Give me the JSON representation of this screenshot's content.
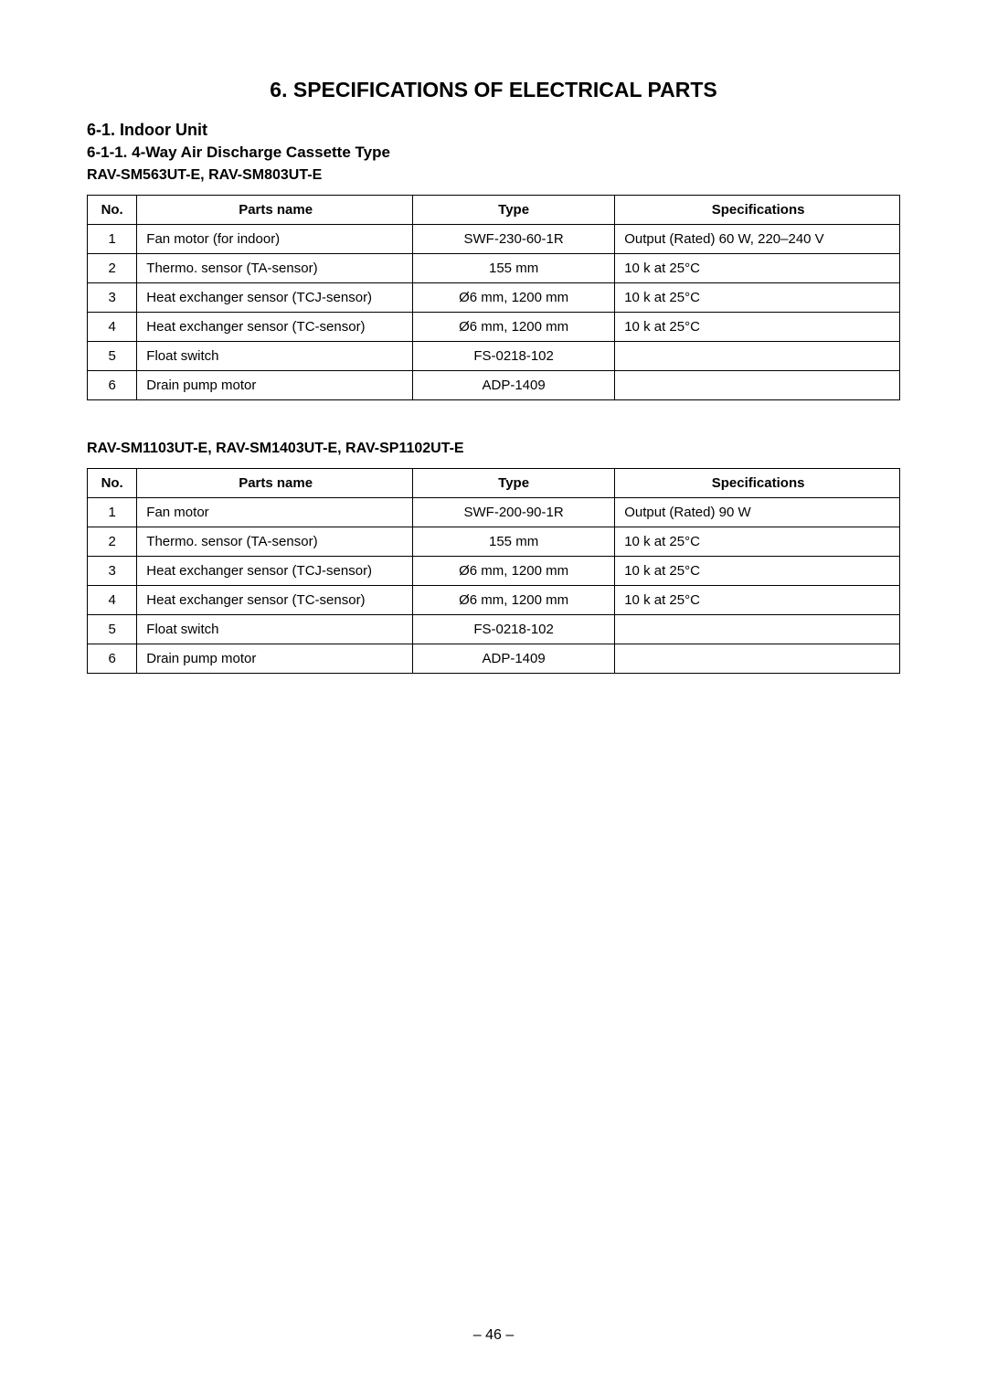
{
  "mainTitle": "6.  SPECIFICATIONS OF ELECTRICAL PARTS",
  "sectionHeading": "6-1.  Indoor Unit",
  "subsectionHeading": "6-1-1.  4-Way Air Discharge Cassette Type",
  "table1": {
    "modelHeading": "RAV-SM563UT-E, RAV-SM803UT-E",
    "headers": {
      "no": "No.",
      "parts": "Parts name",
      "type": "Type",
      "spec": "Specifications"
    },
    "rows": [
      {
        "no": "1",
        "parts": "Fan motor (for indoor)",
        "type": "SWF-230-60-1R",
        "spec": "Output (Rated) 60 W, 220–240 V"
      },
      {
        "no": "2",
        "parts": "Thermo. sensor (TA-sensor)",
        "type": "155 mm",
        "spec": "10 k   at 25°C"
      },
      {
        "no": "3",
        "parts": "Heat exchanger sensor (TCJ-sensor)",
        "type": "Ø6 mm, 1200 mm",
        "spec": "10 k   at 25°C"
      },
      {
        "no": "4",
        "parts": "Heat exchanger sensor (TC-sensor)",
        "type": "Ø6 mm, 1200 mm",
        "spec": "10 k   at 25°C"
      },
      {
        "no": "5",
        "parts": "Float switch",
        "type": "FS-0218-102",
        "spec": ""
      },
      {
        "no": "6",
        "parts": "Drain pump motor",
        "type": "ADP-1409",
        "spec": ""
      }
    ]
  },
  "table2": {
    "modelHeading": "RAV-SM1103UT-E, RAV-SM1403UT-E, RAV-SP1102UT-E",
    "headers": {
      "no": "No.",
      "parts": "Parts name",
      "type": "Type",
      "spec": "Specifications"
    },
    "rows": [
      {
        "no": "1",
        "parts": "Fan motor",
        "type": "SWF-200-90-1R",
        "spec": "Output (Rated) 90 W"
      },
      {
        "no": "2",
        "parts": "Thermo. sensor (TA-sensor)",
        "type": "155 mm",
        "spec": "10 k   at 25°C"
      },
      {
        "no": "3",
        "parts": "Heat exchanger sensor (TCJ-sensor)",
        "type": "Ø6 mm, 1200 mm",
        "spec": "10 k   at 25°C"
      },
      {
        "no": "4",
        "parts": "Heat exchanger sensor (TC-sensor)",
        "type": "Ø6 mm, 1200 mm",
        "spec": "10 k   at 25°C"
      },
      {
        "no": "5",
        "parts": "Float switch",
        "type": "FS-0218-102",
        "spec": ""
      },
      {
        "no": "6",
        "parts": "Drain pump motor",
        "type": "ADP-1409",
        "spec": ""
      }
    ]
  },
  "pageNumber": "– 46 –"
}
